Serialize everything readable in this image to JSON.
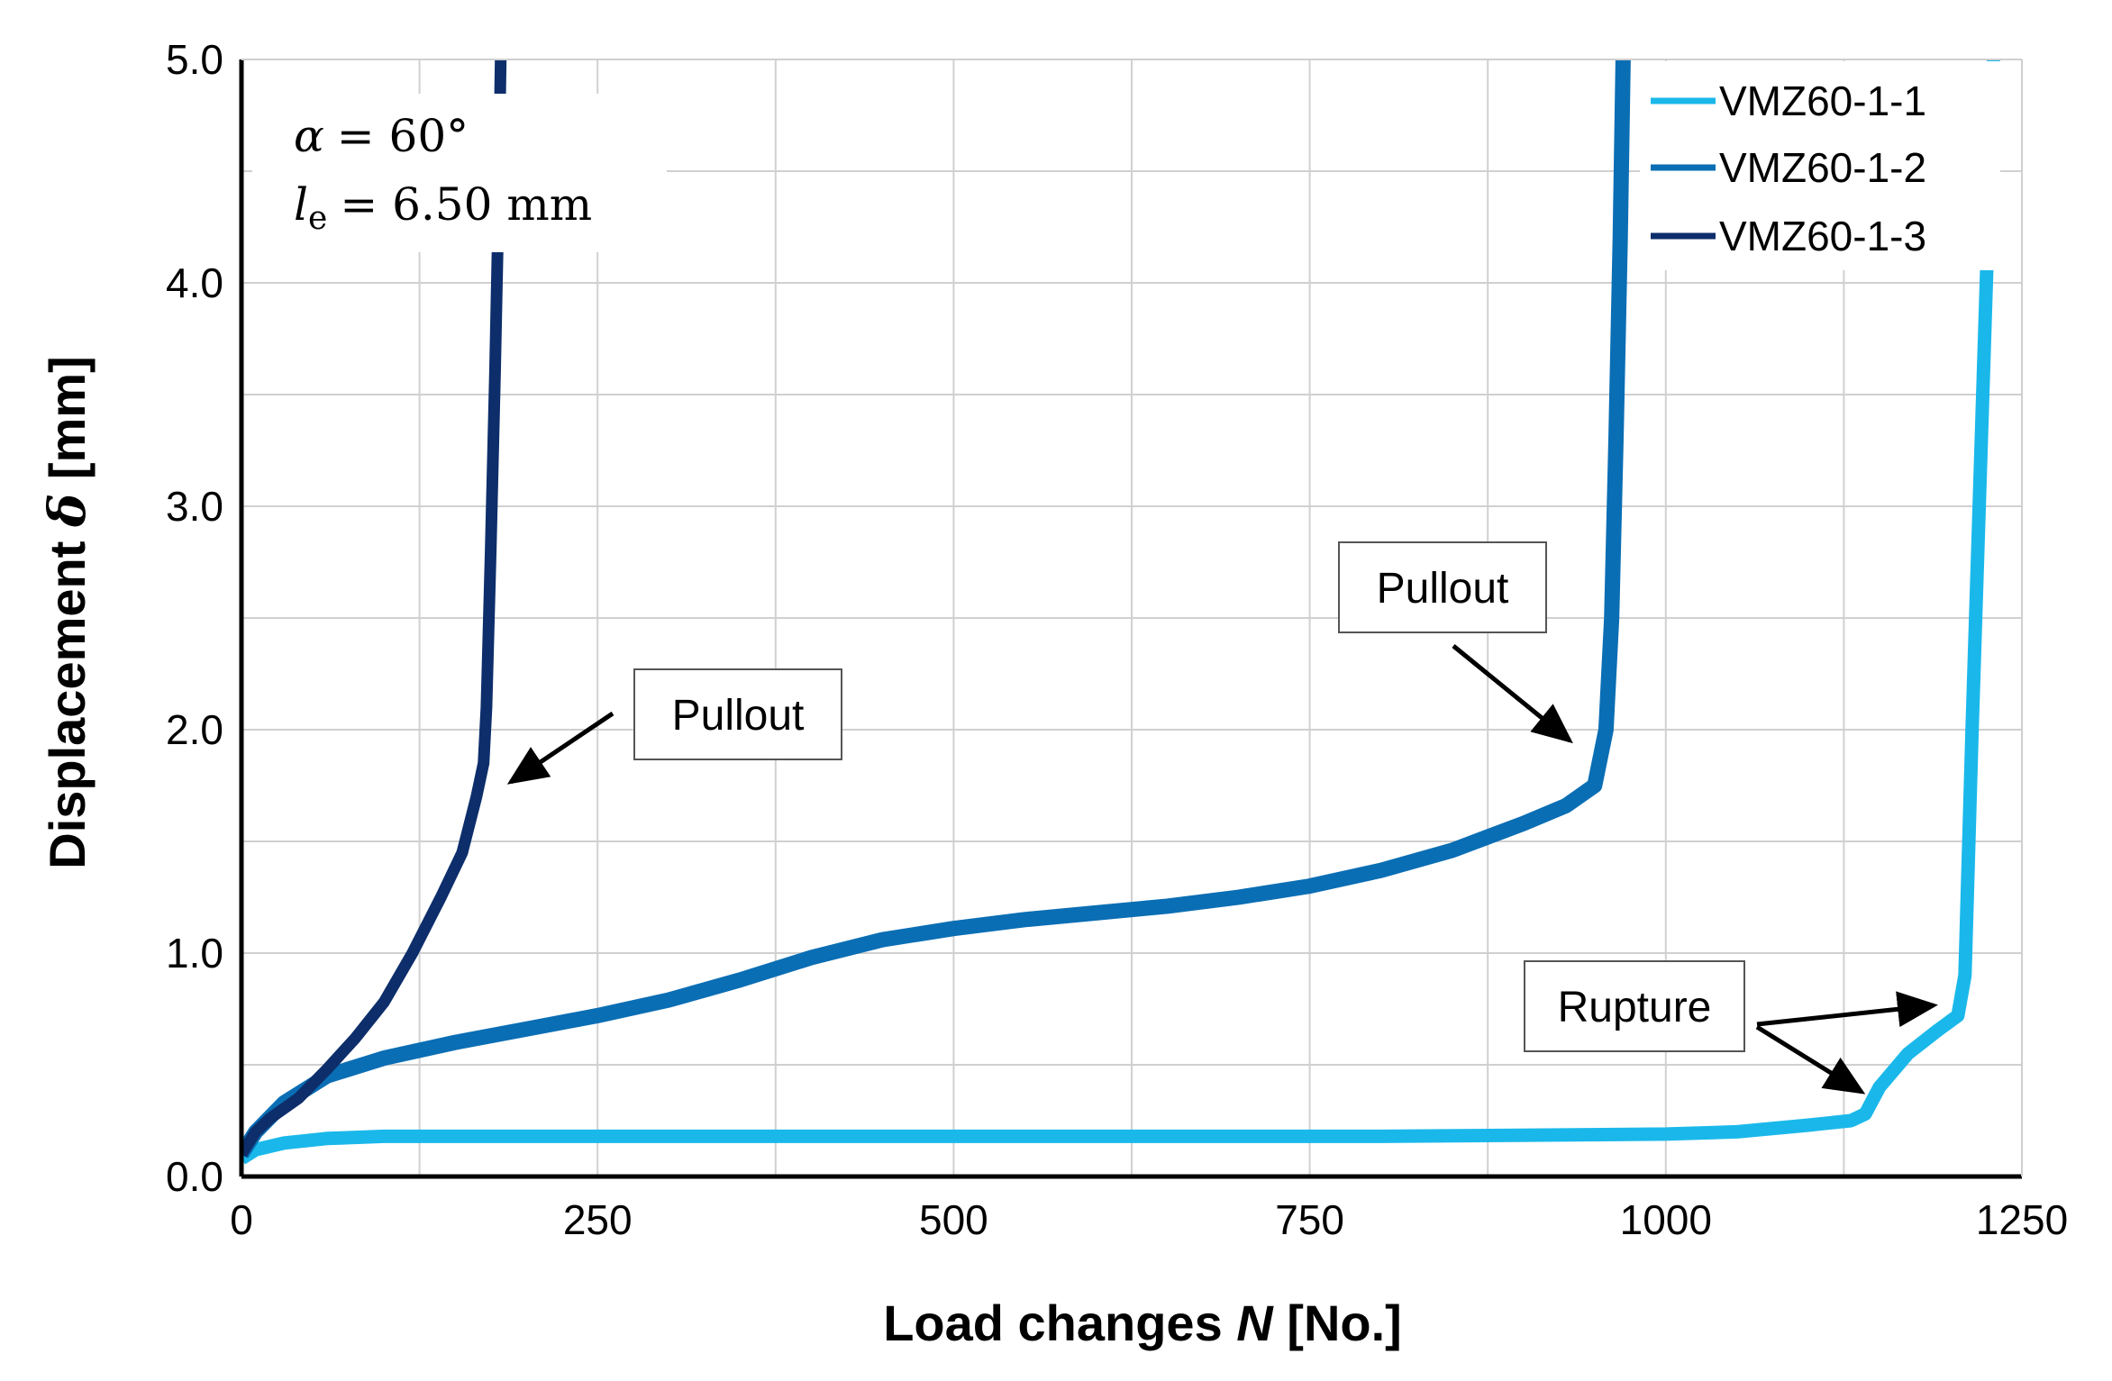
{
  "chart_data": {
    "type": "line",
    "title": "",
    "xlabel": "Load changes N [No.]",
    "xlabel_parts": [
      "Load changes ",
      "N",
      " [No.]"
    ],
    "ylabel": "Displacement δ [mm]",
    "ylabel_parts": [
      "Displacement ",
      "δ",
      " [mm]"
    ],
    "xlim": [
      0,
      1250
    ],
    "ylim": [
      0,
      5
    ],
    "xticks": [
      0,
      250,
      500,
      750,
      1000,
      1250
    ],
    "xtick_labels": [
      "0",
      "250",
      "500",
      "750",
      "1000",
      "1250"
    ],
    "yticks": [
      0,
      1,
      2,
      3,
      4,
      5
    ],
    "ytick_labels": [
      "0.0",
      "1.0",
      "2.0",
      "3.0",
      "4.0",
      "5.0"
    ],
    "x_minor_step": 125,
    "y_minor_step": 0.5,
    "grid": true,
    "legend_position": "top-right",
    "parameters": {
      "alpha_symbol": "α",
      "alpha_value": "= 60°",
      "le_symbol": "l",
      "le_subscript": "e",
      "le_value": "= 6.50 mm"
    },
    "series": [
      {
        "name": "VMZ60-1-1",
        "color": "#1ab8ea",
        "x": [
          0,
          10,
          30,
          60,
          100,
          200,
          400,
          600,
          800,
          1000,
          1050,
          1100,
          1130,
          1140,
          1150,
          1170,
          1190,
          1205,
          1210,
          1215,
          1220,
          1225,
          1230
        ],
        "y": [
          0.08,
          0.12,
          0.15,
          0.17,
          0.18,
          0.18,
          0.18,
          0.18,
          0.18,
          0.19,
          0.2,
          0.23,
          0.25,
          0.28,
          0.4,
          0.55,
          0.65,
          0.72,
          0.9,
          2.0,
          3.0,
          4.0,
          5.0
        ]
      },
      {
        "name": "VMZ60-1-2",
        "color": "#0a6eb4",
        "x": [
          0,
          10,
          30,
          60,
          100,
          150,
          200,
          250,
          300,
          350,
          400,
          450,
          500,
          550,
          600,
          650,
          700,
          750,
          800,
          850,
          900,
          930,
          950,
          958,
          962,
          965,
          968,
          970
        ],
        "y": [
          0.1,
          0.2,
          0.33,
          0.45,
          0.53,
          0.6,
          0.66,
          0.72,
          0.79,
          0.88,
          0.98,
          1.06,
          1.11,
          1.15,
          1.18,
          1.21,
          1.25,
          1.3,
          1.37,
          1.46,
          1.58,
          1.66,
          1.75,
          2.0,
          2.5,
          3.3,
          4.2,
          5.0
        ]
      },
      {
        "name": "VMZ60-1-3",
        "color": "#0d2e6b",
        "x": [
          0,
          10,
          20,
          40,
          60,
          80,
          100,
          120,
          140,
          155,
          165,
          170,
          172,
          175,
          178,
          180,
          182
        ],
        "y": [
          0.1,
          0.2,
          0.26,
          0.35,
          0.48,
          0.62,
          0.78,
          1.0,
          1.25,
          1.45,
          1.7,
          1.85,
          2.1,
          2.8,
          3.6,
          4.2,
          5.0
        ]
      }
    ],
    "annotations": [
      {
        "label": "Pullout",
        "series": "VMZ60-1-3",
        "arrow_to": [
          {
            "x": 183,
            "y": 1.75
          }
        ]
      },
      {
        "label": "Pullout",
        "series": "VMZ60-1-2",
        "arrow_to": [
          {
            "x": 938,
            "y": 1.92
          }
        ]
      },
      {
        "label": "Rupture",
        "series": "VMZ60-1-1",
        "arrow_to": [
          {
            "x": 1137,
            "y": 0.35
          },
          {
            "x": 1188,
            "y": 0.77
          }
        ]
      }
    ]
  }
}
